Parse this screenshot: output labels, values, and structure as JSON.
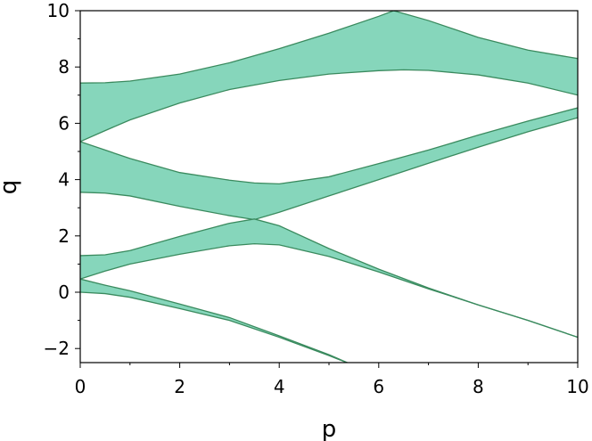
{
  "chart_data": {
    "type": "area",
    "xlabel": "p",
    "ylabel": "q",
    "xlim": [
      0,
      10
    ],
    "ylim": [
      -2.5,
      10
    ],
    "grid": false,
    "x_ticks": [
      0,
      2,
      4,
      6,
      8,
      10
    ],
    "x_tick_labels": [
      "0",
      "2",
      "4",
      "6",
      "8",
      "10"
    ],
    "y_ticks": [
      -2,
      0,
      2,
      4,
      6,
      8,
      10
    ],
    "y_tick_labels": [
      "−2",
      "0",
      "2",
      "4",
      "6",
      "8",
      "10"
    ],
    "fill_color": "#86d6bb",
    "edge_color": "#3a8a5e",
    "bands": [
      {
        "lower": {
          "x": [
            0,
            0.5,
            1,
            2,
            3,
            4,
            5,
            6,
            6.5,
            7,
            8,
            9,
            10
          ],
          "y": [
            5.35,
            5.74,
            6.12,
            6.72,
            7.2,
            7.52,
            7.75,
            7.87,
            7.9,
            7.88,
            7.72,
            7.43,
            7.0
          ]
        },
        "upper": {
          "x": [
            0,
            0.5,
            1,
            2,
            3,
            4,
            5,
            6,
            6.3,
            7,
            8,
            9,
            10
          ],
          "y": [
            7.43,
            7.44,
            7.5,
            7.75,
            8.15,
            8.65,
            9.2,
            9.8,
            10.0,
            9.65,
            9.05,
            8.6,
            8.3
          ]
        }
      },
      {
        "lower": {
          "x": [
            0,
            0.5,
            1,
            2,
            3,
            3.5,
            4,
            5,
            6,
            7,
            8,
            9,
            10
          ],
          "y": [
            3.55,
            3.52,
            3.42,
            3.05,
            2.72,
            2.58,
            2.84,
            3.42,
            4.0,
            4.58,
            5.15,
            5.7,
            6.2
          ]
        },
        "upper": {
          "x": [
            0,
            0.5,
            1,
            2,
            3,
            3.5,
            4,
            5,
            6,
            7,
            8,
            9,
            10
          ],
          "y": [
            5.35,
            5.05,
            4.75,
            4.25,
            3.98,
            3.88,
            3.85,
            4.1,
            4.57,
            5.05,
            5.58,
            6.08,
            6.55
          ]
        }
      },
      {
        "lower": {
          "x": [
            0,
            0.5,
            1,
            2,
            3,
            3.5,
            4,
            5,
            6,
            7,
            8,
            9,
            10
          ],
          "y": [
            0.47,
            0.75,
            1.0,
            1.35,
            1.65,
            1.72,
            1.68,
            1.27,
            0.72,
            0.12,
            -0.45,
            -1.0,
            -1.6
          ]
        },
        "upper": {
          "x": [
            0,
            0.5,
            1,
            2,
            3,
            3.5,
            4,
            5,
            6,
            7,
            8,
            9,
            10
          ],
          "y": [
            1.3,
            1.33,
            1.48,
            1.98,
            2.45,
            2.6,
            2.36,
            1.55,
            0.82,
            0.15,
            -0.45,
            -1.0,
            -1.6
          ]
        }
      },
      {
        "lower": {
          "x": [
            0,
            0.5,
            1,
            2,
            3,
            4,
            5,
            5.5
          ],
          "y": [
            0.0,
            -0.05,
            -0.18,
            -0.58,
            -1.0,
            -1.6,
            -2.25,
            -2.6
          ]
        },
        "upper": {
          "x": [
            0,
            0.5,
            1,
            2,
            3,
            4,
            5,
            5.5
          ],
          "y": [
            0.47,
            0.25,
            0.05,
            -0.42,
            -0.9,
            -1.55,
            -2.22,
            -2.6
          ]
        }
      }
    ]
  }
}
